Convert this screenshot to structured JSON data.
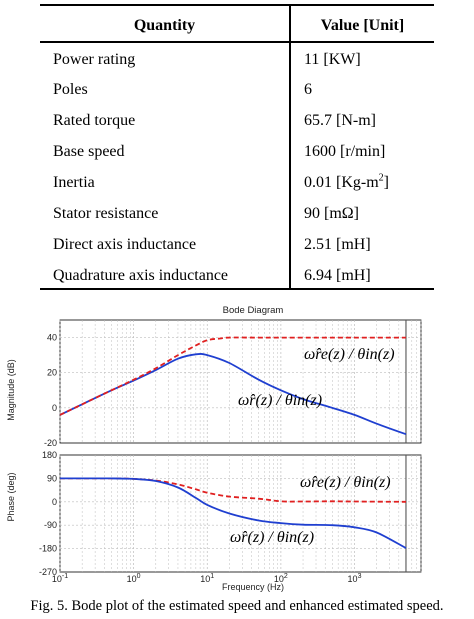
{
  "table": {
    "headers": [
      "Quantity",
      "Value [Unit]"
    ],
    "rows": [
      {
        "quantity": "Power rating",
        "value": "11 [KW]"
      },
      {
        "quantity": "Poles",
        "value": "6"
      },
      {
        "quantity": "Rated torque",
        "value": "65.7 [N-m]"
      },
      {
        "quantity": "Base speed",
        "value": "1600 [r/min]"
      },
      {
        "quantity": "Inertia",
        "value": "0.01 [Kg-m",
        "sup": "2",
        "tail": "]"
      },
      {
        "quantity": "Stator resistance",
        "value": "90 [mΩ]"
      },
      {
        "quantity": "Direct axis inductance",
        "value": "2.51 [mH]"
      },
      {
        "quantity": "Quadrature axis inductance",
        "value": "6.94 [mH]"
      }
    ]
  },
  "colors": {
    "estimated": "#1f3fd0",
    "enhanced": "#e02020",
    "grid": "#bdbdbd",
    "cursor": "#555555"
  },
  "chart_data": {
    "type": "line",
    "title": "Bode Diagram",
    "xlabel": "Frequency  (Hz)",
    "xscale": "log",
    "xlim": [
      0.1,
      8000
    ],
    "x_ticks": [
      {
        "value": 0.1,
        "base": "10",
        "exp": "-1"
      },
      {
        "value": 1,
        "base": "10",
        "exp": "0"
      },
      {
        "value": 10,
        "base": "10",
        "exp": "1"
      },
      {
        "value": 100,
        "base": "10",
        "exp": "2"
      },
      {
        "value": 1000,
        "base": "10",
        "exp": "3"
      }
    ],
    "cursor_x": 5000,
    "magnitude": {
      "ylabel": "Magnitude (dB)",
      "ylim": [
        -20,
        50
      ],
      "yticks": [
        -20,
        0,
        20,
        40
      ],
      "series": [
        {
          "label": "ω̂r(z) / θin(z)",
          "style": "solid",
          "x": [
            0.1,
            0.2,
            0.5,
            1,
            2,
            4,
            7,
            10,
            20,
            50,
            100,
            200,
            500,
            1000,
            2000,
            5000
          ],
          "y": [
            -4,
            2,
            10,
            15.5,
            21.5,
            28,
            30.5,
            30,
            25.5,
            16,
            10,
            5,
            0,
            -4,
            -9,
            -15
          ]
        },
        {
          "label": "ω̂re(z) / θin(z)",
          "style": "dashed",
          "x": [
            0.1,
            0.2,
            0.5,
            1,
            2,
            4,
            7,
            10,
            15,
            20,
            50,
            100,
            1000,
            5000
          ],
          "y": [
            -4,
            2,
            10,
            16,
            22.5,
            30,
            35.5,
            38.5,
            39.5,
            40,
            40,
            40,
            40,
            40
          ]
        }
      ]
    },
    "phase": {
      "ylabel": "Phase (deg)",
      "ylim": [
        -270,
        180
      ],
      "yticks": [
        -270,
        -180,
        -90,
        0,
        90,
        180
      ],
      "series": [
        {
          "label": "ω̂re(z) / θin(z)",
          "style": "dashed",
          "x": [
            0.1,
            0.5,
            1,
            2,
            4,
            7,
            10,
            20,
            50,
            100,
            200,
            500,
            1000,
            5000
          ],
          "y": [
            90,
            90,
            88,
            82,
            67,
            48,
            35,
            20,
            12,
            2,
            1,
            2,
            1,
            0
          ]
        },
        {
          "label": "ω̂r(z) / θin(z)",
          "style": "solid",
          "x": [
            0.1,
            0.5,
            1,
            2,
            4,
            7,
            10,
            20,
            50,
            100,
            200,
            500,
            1000,
            2000,
            5000
          ],
          "y": [
            90,
            90,
            88,
            80,
            55,
            15,
            -12,
            -45,
            -72,
            -82,
            -88,
            -90,
            -98,
            -118,
            -178
          ]
        }
      ]
    }
  },
  "caption": "Fig. 5.  Bode plot of the estimated speed and enhanced estimated speed."
}
